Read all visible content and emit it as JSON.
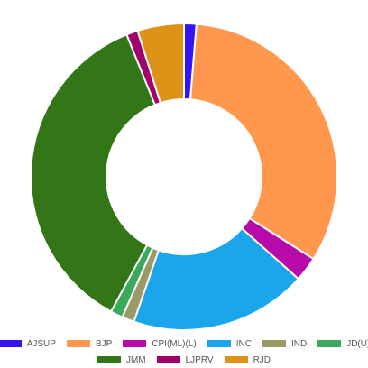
{
  "chart_data": {
    "type": "pie",
    "donut": true,
    "legend_position": "bottom",
    "categories": [
      "AJSUP",
      "BJP",
      "CPI(ML)(L)",
      "INC",
      "IND",
      "JD(U)",
      "JMM",
      "LJPRV",
      "RJD"
    ],
    "values": [
      1.3,
      32.7,
      2.6,
      18.7,
      1.3,
      1.3,
      36.0,
      1.2,
      4.9
    ],
    "colors": [
      "#3415ef",
      "#ff974d",
      "#b70aa8",
      "#1ba6ec",
      "#9b9a66",
      "#3aa95b",
      "#337617",
      "#a1016a",
      "#dc9317"
    ],
    "legend_rows": [
      [
        0,
        1,
        2,
        3,
        4,
        5
      ],
      [
        6,
        7,
        8
      ]
    ]
  }
}
